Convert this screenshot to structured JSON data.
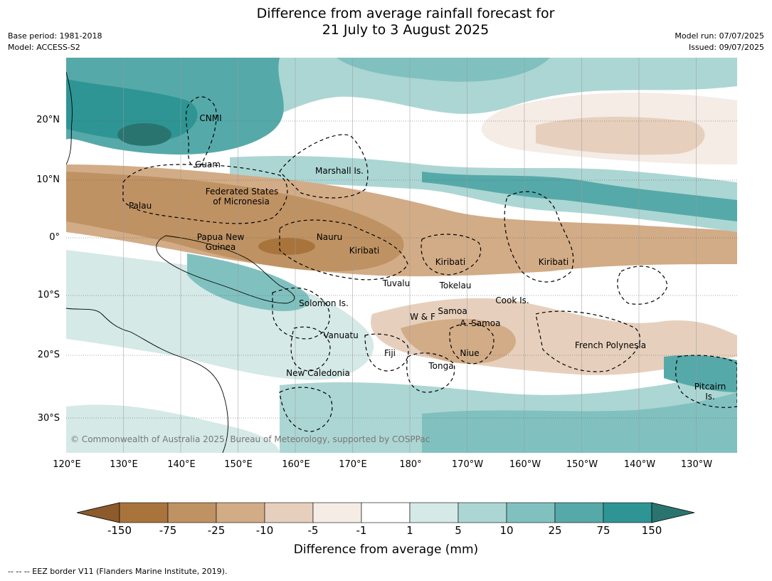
{
  "title_line1": "Difference from average rainfall forecast for",
  "title_line2": "21 July to 3 August 2025",
  "meta_left": [
    "Base period: 1981-2018",
    "Model: ACCESS-S2"
  ],
  "meta_right": [
    "Model run: 07/07/2025",
    "Issued: 09/07/2025"
  ],
  "lat_labels": [
    "20°N",
    "10°N",
    "0°",
    "10°S",
    "20°S",
    "30°S"
  ],
  "lon_labels": [
    "120°E",
    "130°E",
    "140°E",
    "150°E",
    "160°E",
    "170°E",
    "180°",
    "170°W",
    "160°W",
    "150°W",
    "140°W",
    "130°W"
  ],
  "places": {
    "cnmi": "CNMI",
    "guam": "Guam",
    "marshall": "Marshall Is.",
    "fsm_1": "Federated States",
    "fsm_2": "of Micronesia",
    "palau": "Palau",
    "png_1": "Papua New",
    "png_2": "Guinea",
    "nauru": "Nauru",
    "kiribati_w": "Kiribati",
    "kiribati_c": "Kiribati",
    "kiribati_e": "Kiribati",
    "tuvalu": "Tuvalu",
    "tokelau": "Tokelau",
    "cook": "Cook Is.",
    "solomon": "Solomon Is.",
    "samoa": "Samoa",
    "wf": "W & F",
    "asamoa": "A. Samoa",
    "vanuatu": "Vanuatu",
    "fiji": "Fiji",
    "niue": "Niue",
    "tonga": "Tonga",
    "frpoly": "French Polynesia",
    "newcal": "New Caledonia",
    "pitcairn_1": "Pitcairn",
    "pitcairn_2": "Is."
  },
  "copyright": "© Commonwealth of Australia 2025, Bureau of Meteorology, supported by COSPPac",
  "colorbar": {
    "ticks": [
      "-150",
      "-75",
      "-25",
      "-10",
      "-5",
      "-1",
      "1",
      "5",
      "10",
      "25",
      "75",
      "150"
    ],
    "colors": [
      "#8c5a2b",
      "#a8743c",
      "#bf9263",
      "#d2ac87",
      "#e6d0bd",
      "#f4ece5",
      "#ffffff",
      "#d5e9e7",
      "#acd6d3",
      "#80c1bf",
      "#56a9a9",
      "#2e9594",
      "#2a7470"
    ],
    "label": "Difference from average (mm)"
  },
  "footnote": "--  --  -- EEZ border V11 (Flanders Marine Institute, 2019)."
}
